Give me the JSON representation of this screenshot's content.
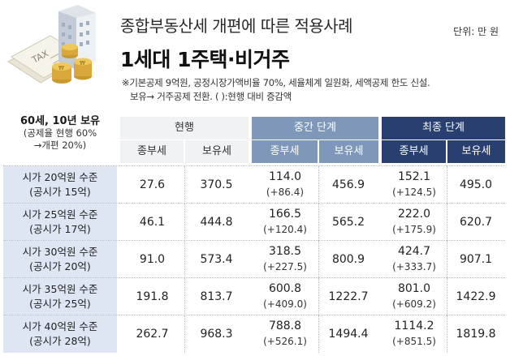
{
  "header": {
    "title": "종합부동산세 개편에 따른 적용사례",
    "subtitle": "1세대 1주택·비거주",
    "unit": "단위: 만 원",
    "notes": [
      "※기본공제 9억원, 공정시장가액비율 70%, 세율체계 일원화, 세액공제 한도 신설.",
      "보유→ 거주공제 전환. ( ):현행 대비 증감액"
    ]
  },
  "illustration": {
    "sign_text": "TAX",
    "icons": [
      "building-icon",
      "coin-stack-icon",
      "tax-document-icon"
    ]
  },
  "table": {
    "corner": [
      "60세, 10년 보유",
      "(공제율 현행 60%",
      "→개편 20%)"
    ],
    "groups": [
      "현행",
      "중간 단계",
      "최종 단계"
    ],
    "subheaders": [
      "종부세",
      "보유세",
      "종부세",
      "보유세",
      "종부세",
      "보유세"
    ],
    "rows": [
      {
        "label1": "시가 20억원 수준",
        "label2": "(공시가 15억)",
        "cur_jong": "27.6",
        "cur_bo": "370.5",
        "mid_jong": "114.0",
        "mid_diff": "(+86.4)",
        "mid_bo": "456.9",
        "fin_jong": "152.1",
        "fin_diff": "(+124.5)",
        "fin_bo": "495.0"
      },
      {
        "label1": "시가 25억원 수준",
        "label2": "(공시가 17억)",
        "cur_jong": "46.1",
        "cur_bo": "444.8",
        "mid_jong": "166.5",
        "mid_diff": "(+120.4)",
        "mid_bo": "565.2",
        "fin_jong": "222.0",
        "fin_diff": "(+175.9)",
        "fin_bo": "620.7"
      },
      {
        "label1": "시가 30억원 수준",
        "label2": "(공시가 20억)",
        "cur_jong": "91.0",
        "cur_bo": "573.4",
        "mid_jong": "318.5",
        "mid_diff": "(+227.5)",
        "mid_bo": "800.9",
        "fin_jong": "424.7",
        "fin_diff": "(+333.7)",
        "fin_bo": "907.1"
      },
      {
        "label1": "시가 35억원 수준",
        "label2": "(공시가 25억)",
        "cur_jong": "191.8",
        "cur_bo": "813.7",
        "mid_jong": "600.8",
        "mid_diff": "(+409.0)",
        "mid_bo": "1222.7",
        "fin_jong": "801.0",
        "fin_diff": "(+609.2)",
        "fin_bo": "1422.9"
      },
      {
        "label1": "시가 40억원 수준",
        "label2": "(공시가 28억)",
        "cur_jong": "262.7",
        "cur_bo": "968.3",
        "mid_jong": "788.8",
        "mid_diff": "(+526.1)",
        "mid_bo": "1494.4",
        "fin_jong": "1114.2",
        "fin_diff": "(+851.5)",
        "fin_bo": "1819.8"
      }
    ]
  },
  "colors": {
    "current": "#f0f2f5",
    "intermediate": "#7f97b8",
    "final": "#293f6f",
    "row_label": "#dde6f2"
  }
}
